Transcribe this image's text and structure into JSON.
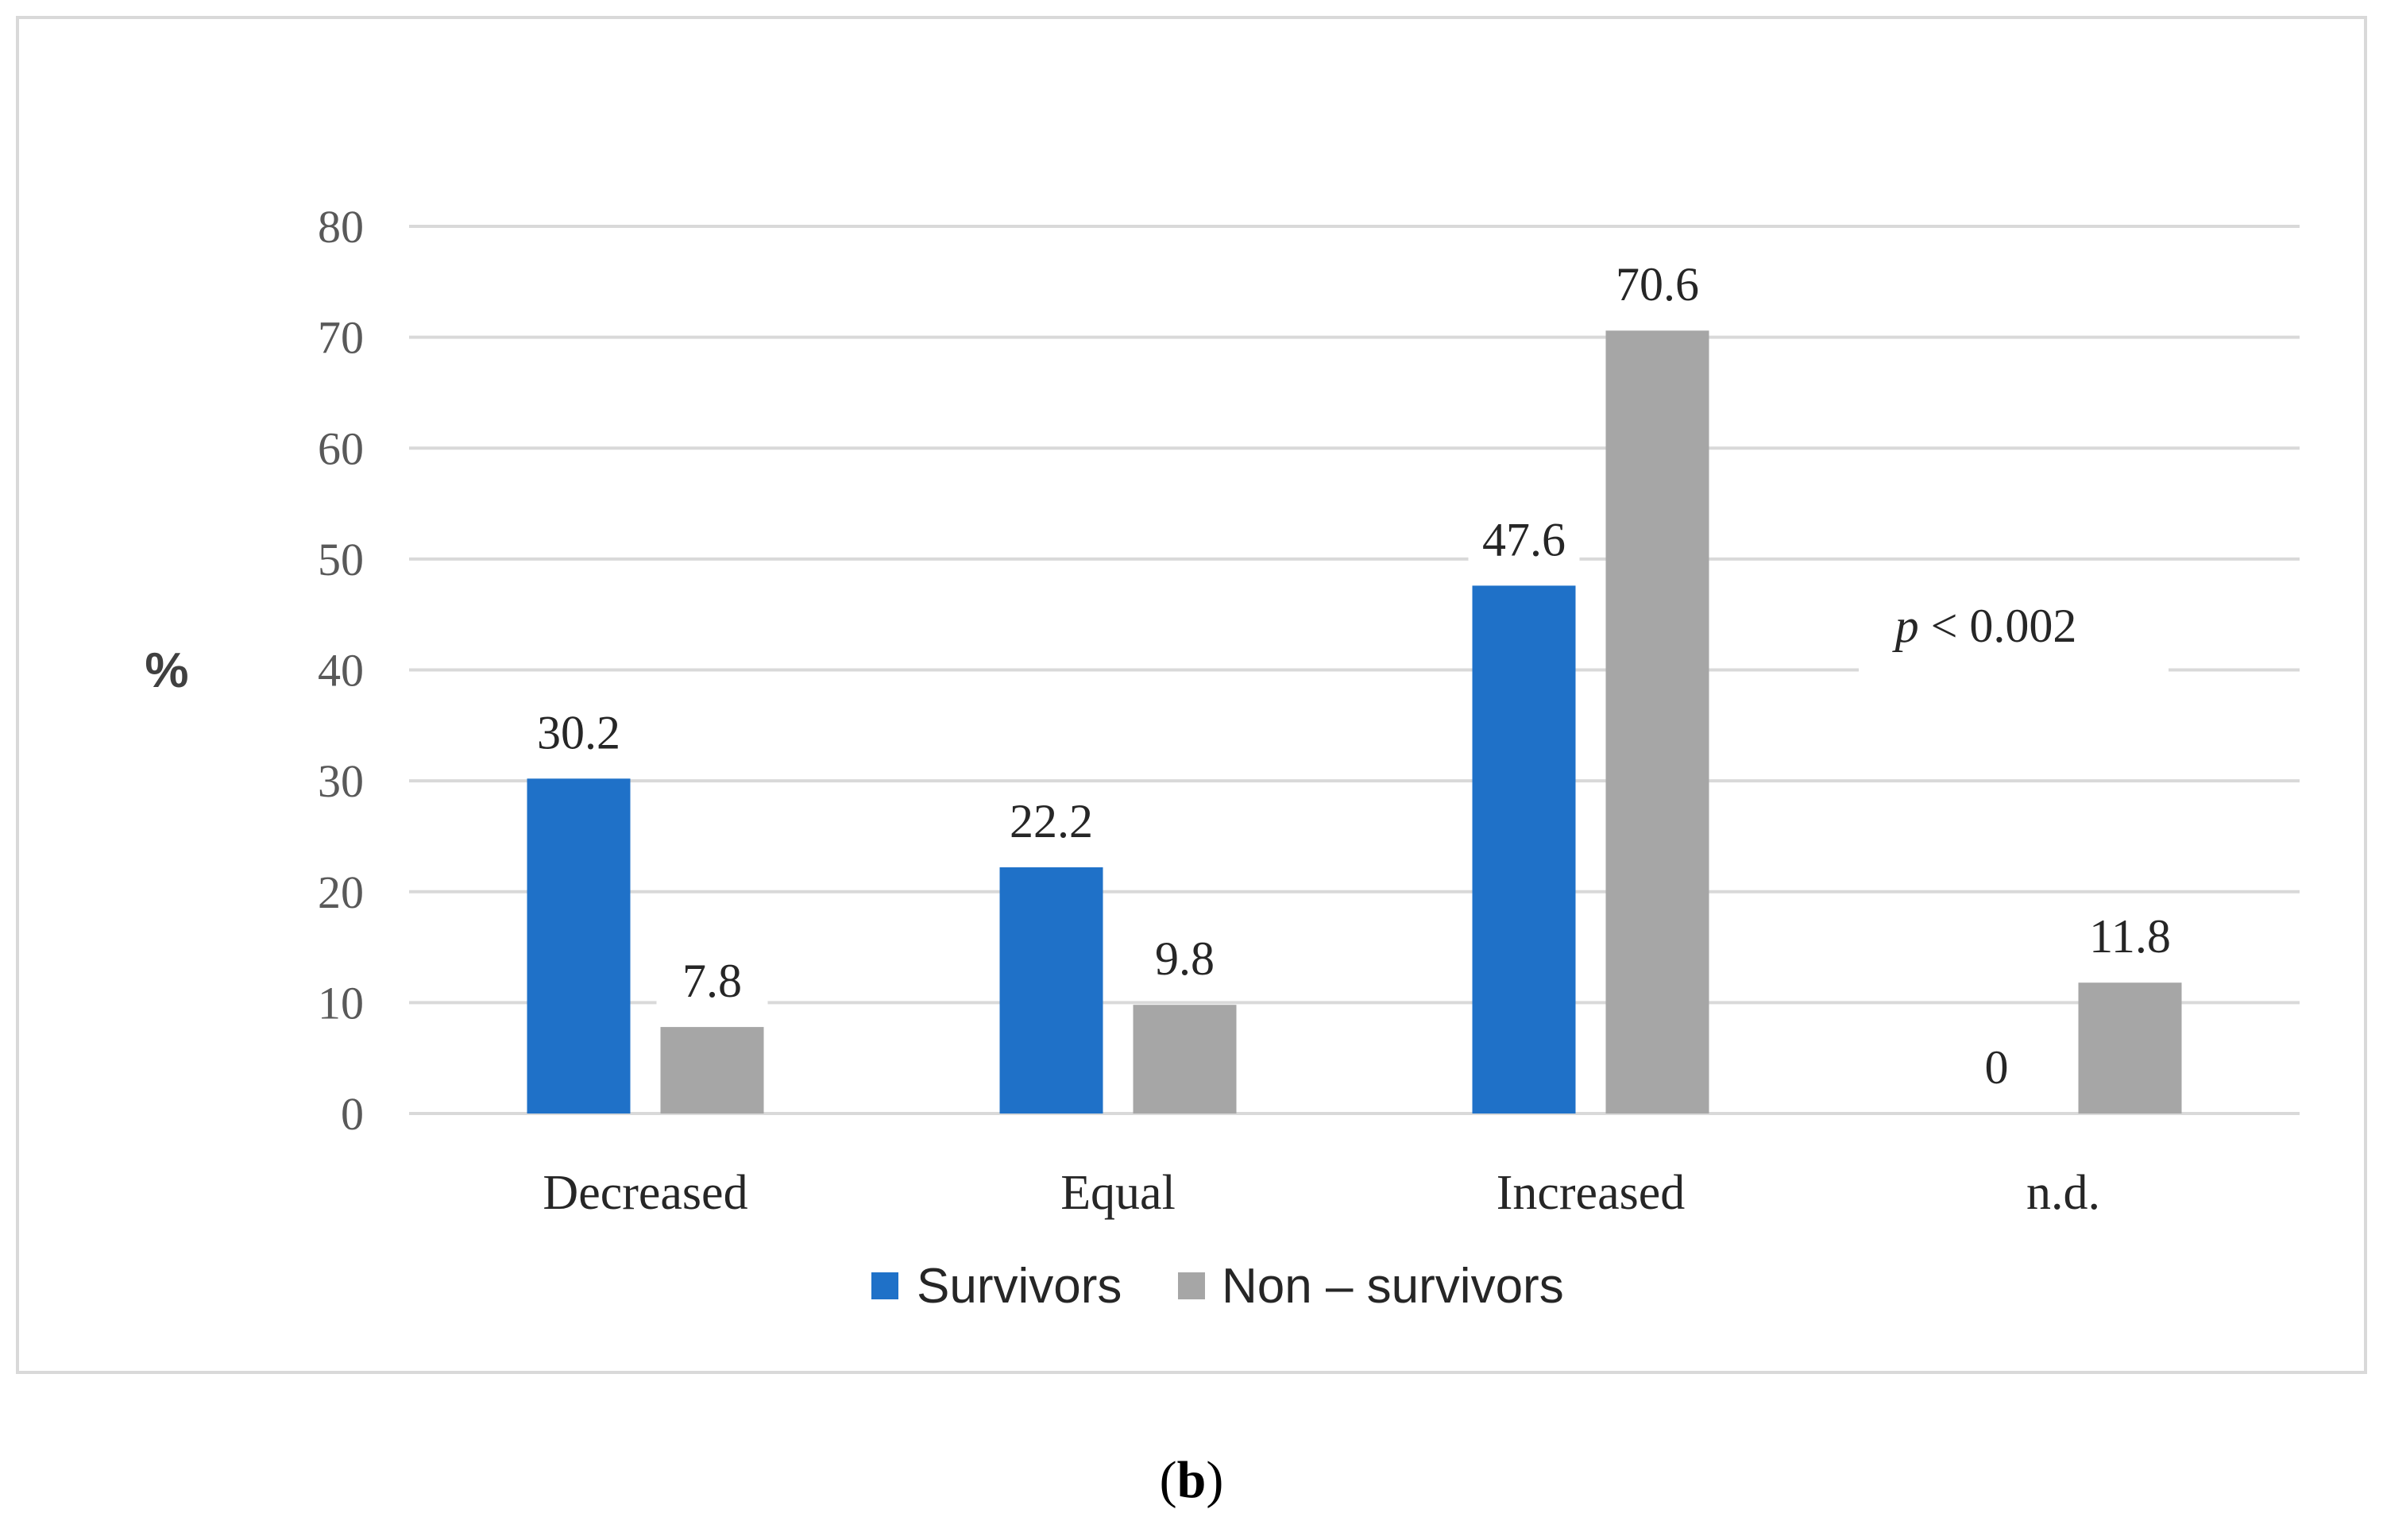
{
  "chart_data": {
    "type": "bar",
    "title": "",
    "xlabel": "",
    "ylabel": "%",
    "ylim": [
      0,
      80
    ],
    "yticks": [
      0,
      10,
      20,
      30,
      40,
      50,
      60,
      70,
      80
    ],
    "grid": true,
    "legend_position": "bottom-center",
    "categories": [
      "Decreased",
      "Equal",
      "Increased",
      "n.d."
    ],
    "series": [
      {
        "name": "Survivors",
        "color": "#1f71c8",
        "values": [
          30.2,
          22.2,
          47.6,
          0
        ],
        "labels": [
          "30.2",
          "22.2",
          "47.6",
          "0"
        ]
      },
      {
        "name": "Non – survivors",
        "color": "#a6a6a6",
        "values": [
          7.8,
          9.8,
          70.6,
          11.8
        ],
        "labels": [
          "7.8",
          "9.8",
          "70.6",
          "11.8"
        ]
      }
    ],
    "annotation": {
      "italic": "p",
      "rest": " < 0.002"
    }
  },
  "panel_label": {
    "open": "(",
    "letter": "b",
    "close": ")"
  }
}
